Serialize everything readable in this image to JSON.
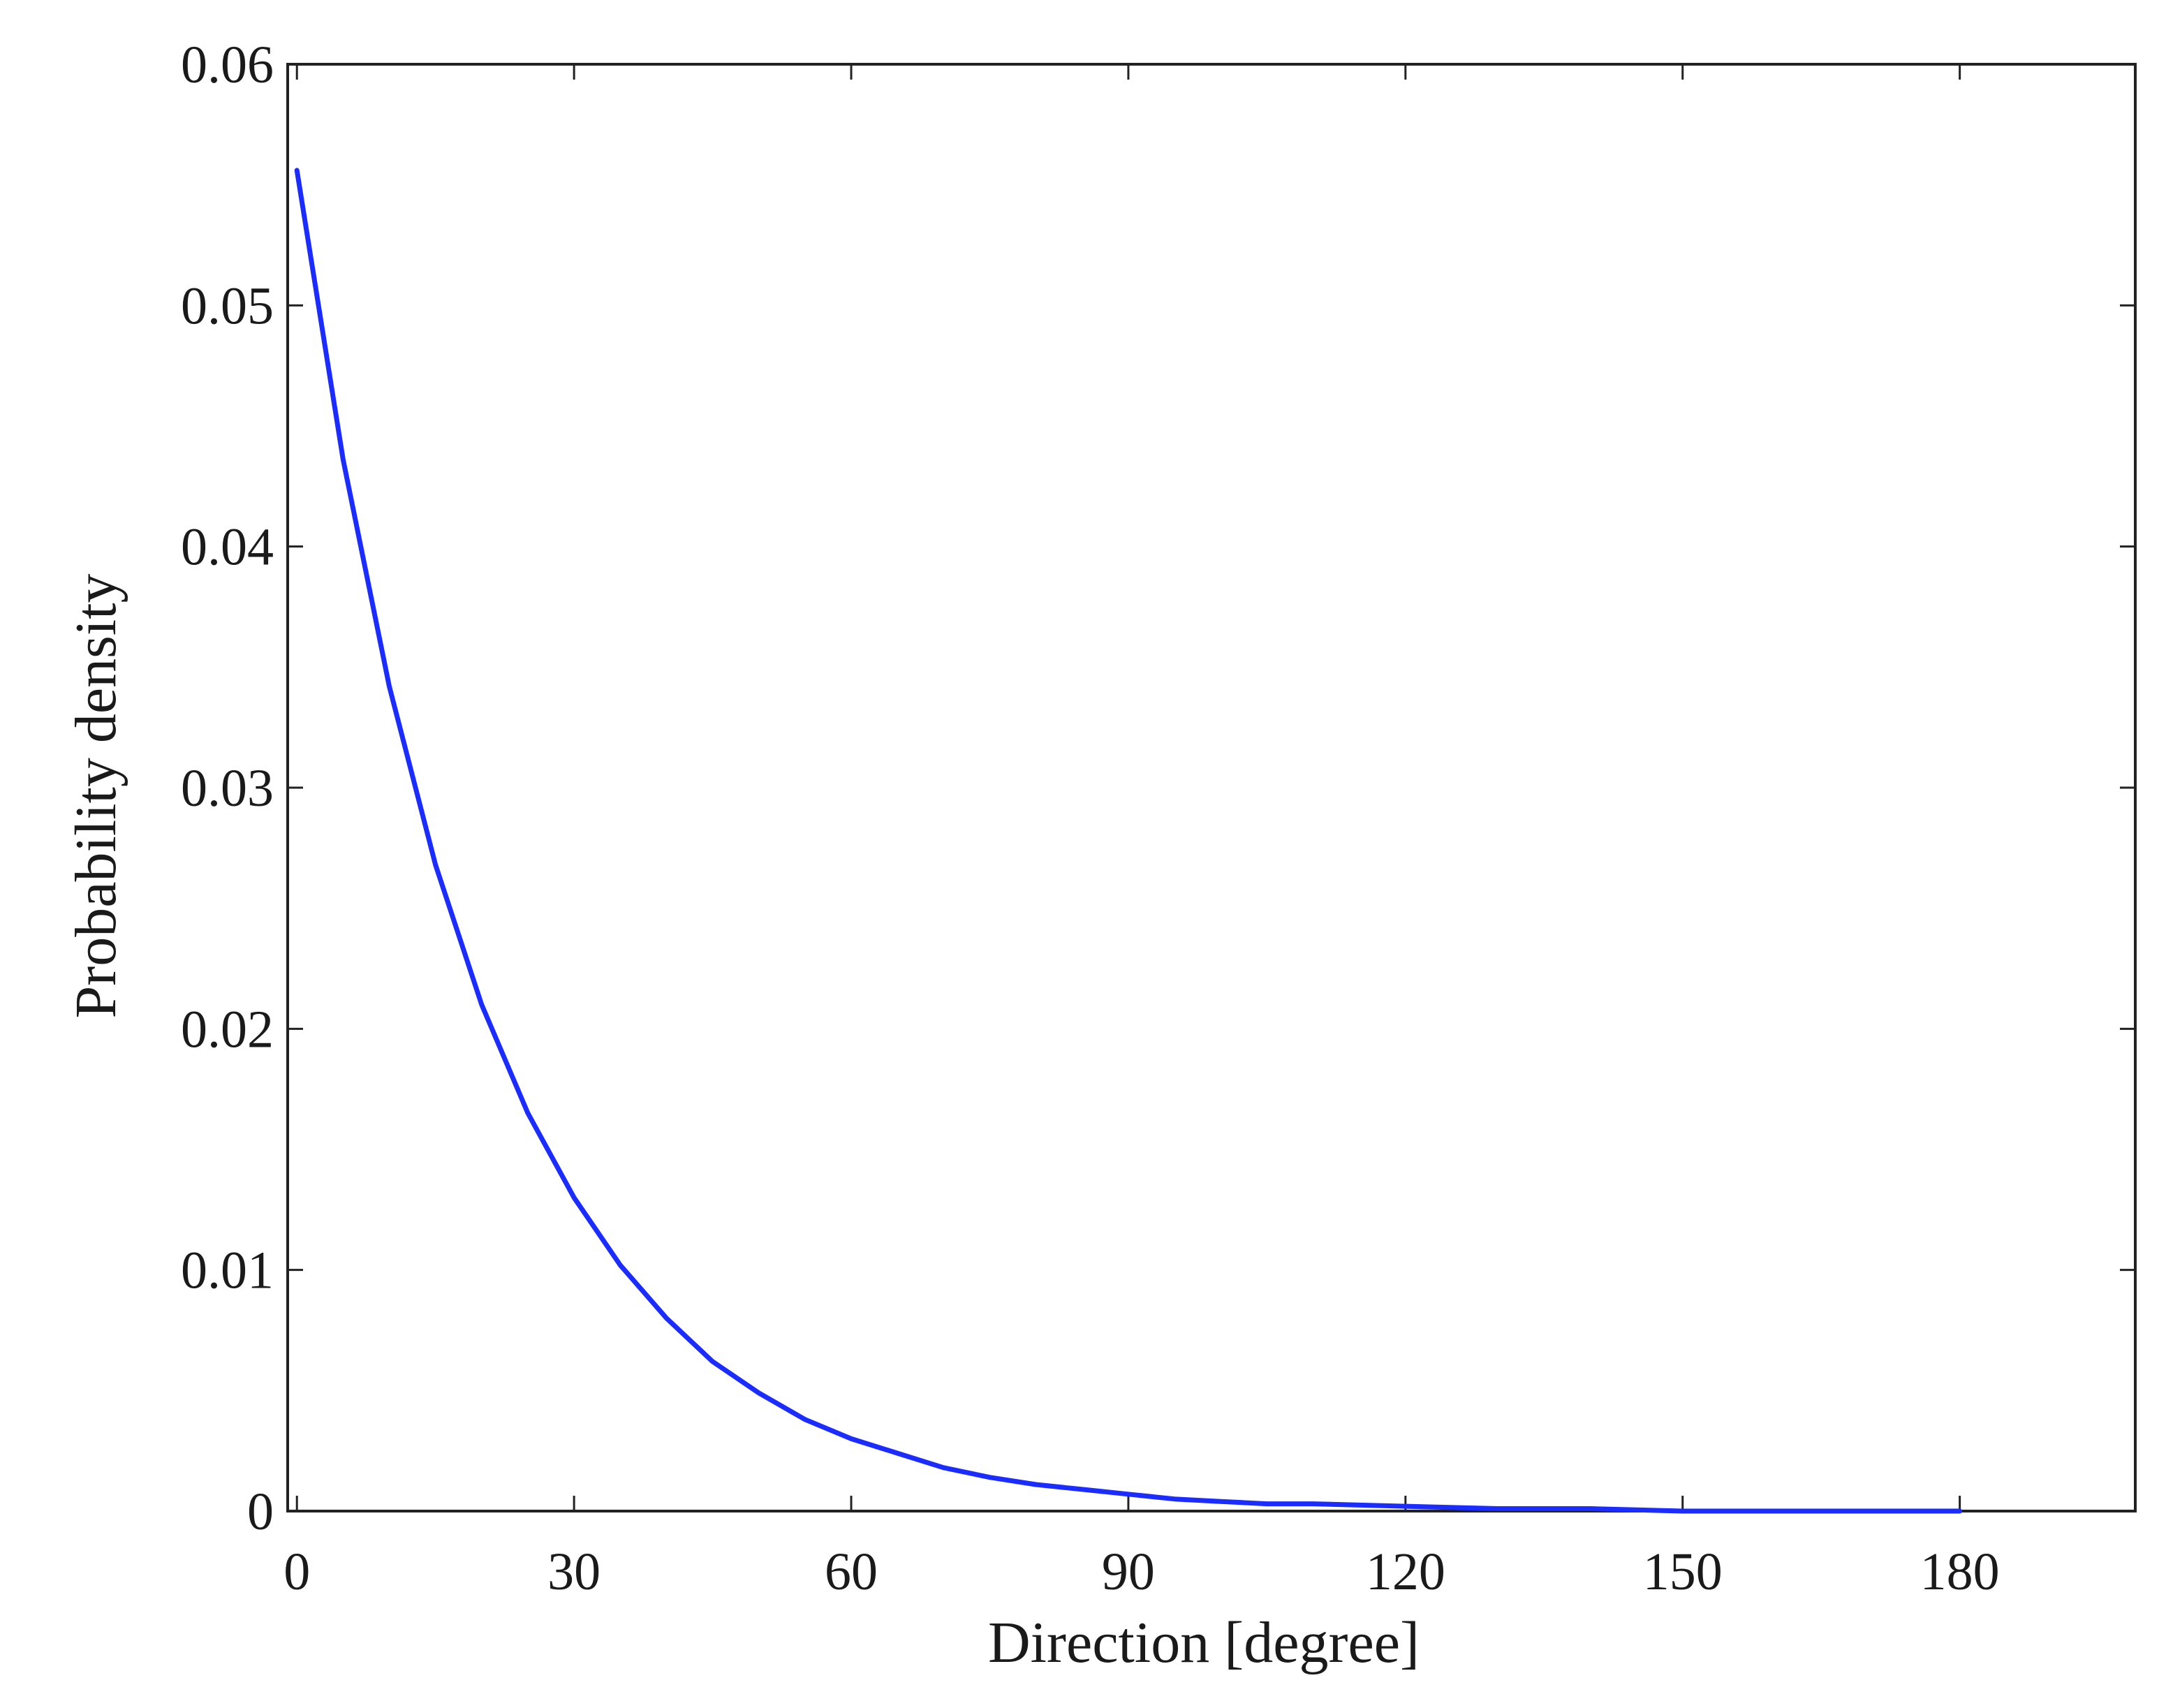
{
  "chart_data": {
    "type": "line",
    "title": "",
    "xlabel": "Direction [degree]",
    "ylabel": "Probability density",
    "xlim": [
      -1,
      199
    ],
    "ylim": [
      0,
      0.06
    ],
    "x_ticks": [
      0,
      30,
      60,
      90,
      120,
      150,
      180
    ],
    "x_tick_labels": [
      "0",
      "30",
      "60",
      "90",
      "120",
      "150",
      "180"
    ],
    "y_ticks": [
      0,
      0.01,
      0.02,
      0.03,
      0.04,
      0.05,
      0.06
    ],
    "y_tick_labels": [
      "0",
      "0.01",
      "0.02",
      "0.03",
      "0.04",
      "0.05",
      "0.06"
    ],
    "grid": false,
    "legend": "none",
    "line_color": "#1a2cff",
    "series": [
      {
        "x": [
          0,
          5,
          10,
          15,
          20,
          25,
          30,
          35,
          40,
          45,
          50,
          55,
          60,
          65,
          70,
          75,
          80,
          85,
          90,
          95,
          100,
          105,
          110,
          120,
          130,
          140,
          150,
          160,
          170,
          180
        ],
        "values": [
          0.0556,
          0.0436,
          0.0342,
          0.0268,
          0.021,
          0.0165,
          0.013,
          0.0102,
          0.008,
          0.0062,
          0.0049,
          0.0038,
          0.003,
          0.0024,
          0.0018,
          0.0014,
          0.0011,
          0.0009,
          0.0007,
          0.0005,
          0.0004,
          0.0003,
          0.0003,
          0.0002,
          0.0001,
          0.0001,
          0.0,
          0.0,
          0.0,
          0.0
        ]
      }
    ]
  }
}
